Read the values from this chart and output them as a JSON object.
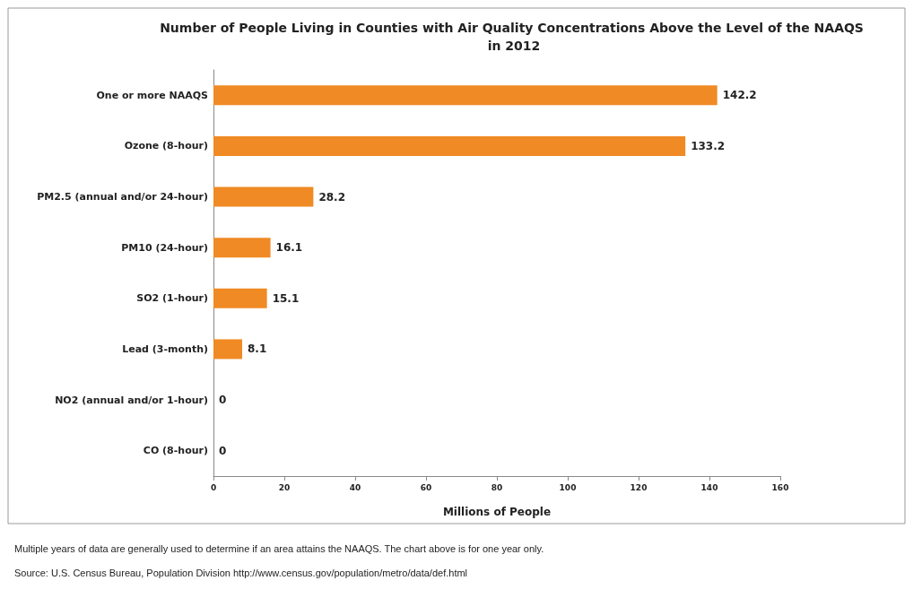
{
  "chart_data": {
    "type": "bar",
    "orientation": "horizontal",
    "title": "Number of People Living in Counties with Air Quality Concentrations Above the Level of the NAAQS in 2012",
    "categories": [
      "One or more NAAQS",
      "Ozone (8-hour)",
      "PM2.5 (annual and/or 24-hour)",
      "PM10 (24-hour)",
      "SO2 (1-hour)",
      "Lead (3-month)",
      "NO2 (annual and/or 1-hour)",
      "CO (8-hour)"
    ],
    "values": [
      142.2,
      133.2,
      28.2,
      16.1,
      15.1,
      8.1,
      0,
      0
    ],
    "color": "#f08a24",
    "xlabel": "Millions of People",
    "xlim": [
      0,
      160
    ],
    "xticks": [
      0,
      20,
      40,
      60,
      80,
      100,
      120,
      140,
      160
    ],
    "grid": false,
    "data_labels": true,
    "annotations": [
      "Multiple years of data are generally used to determine if an area attains the NAAQS. The chart above is for one year only.",
      "Source: U.S. Census Bureau, Population Division http://www.census.gov/population/metro/data/def.html"
    ]
  }
}
